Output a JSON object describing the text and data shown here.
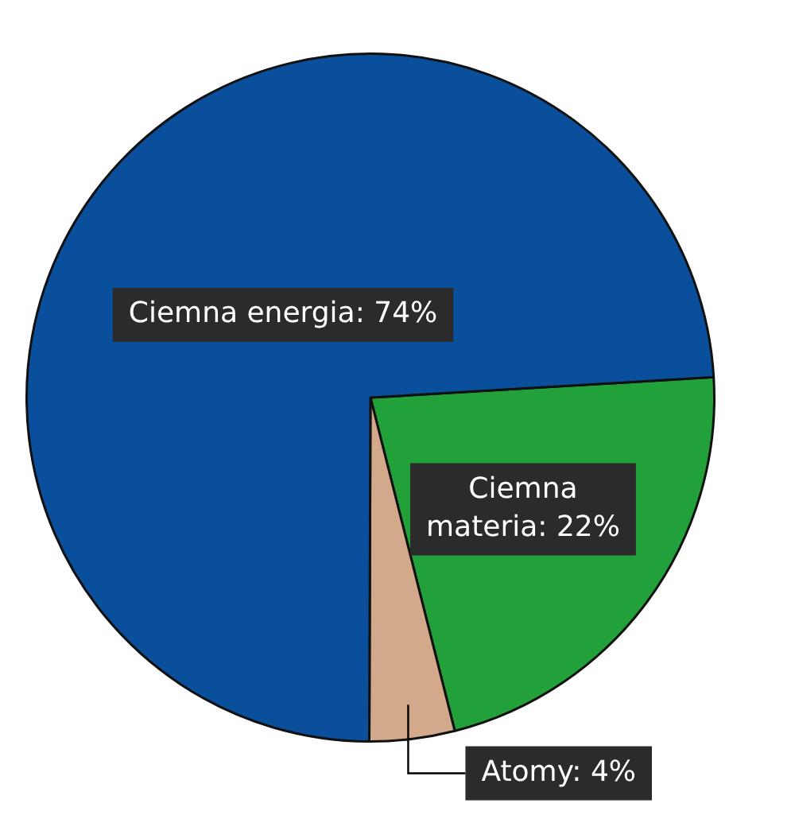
{
  "chart_data": {
    "type": "pie",
    "categories": [
      "Ciemna materia",
      "Atomy",
      "Ciemna energia"
    ],
    "values": [
      22,
      4,
      74
    ],
    "value_labels": [
      "22%",
      "4%",
      "74%"
    ],
    "colors": [
      "#22a03a",
      "#d2a98a",
      "#0a4f9c"
    ]
  }
}
